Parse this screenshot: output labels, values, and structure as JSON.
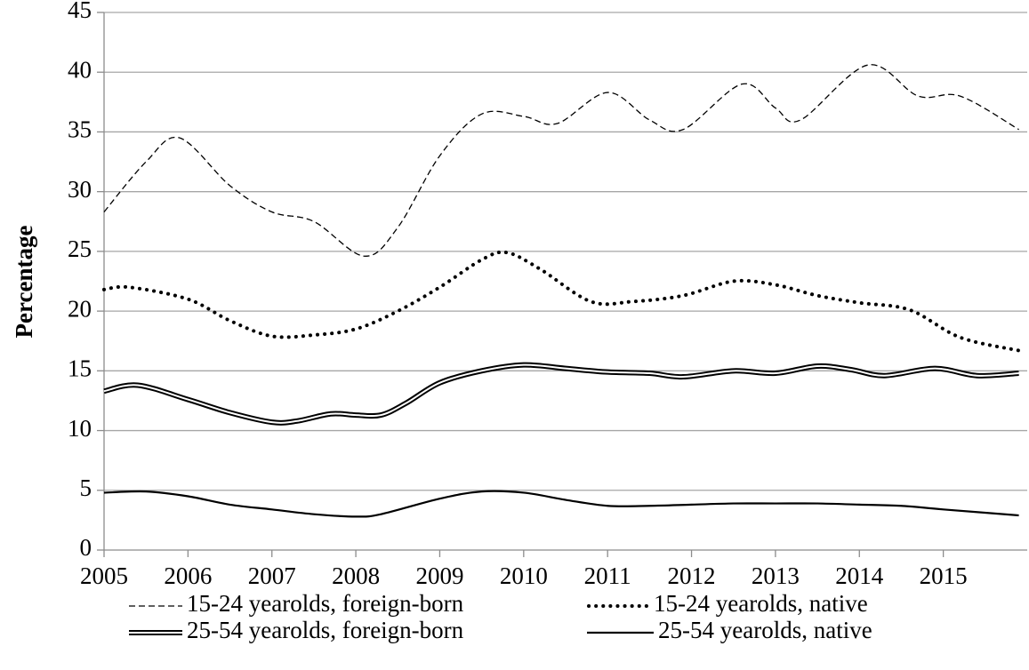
{
  "chart_data": {
    "type": "line",
    "y_label": "Percentage",
    "xlim": [
      2005,
      2016
    ],
    "xticks": [
      2005,
      2006,
      2007,
      2008,
      2009,
      2010,
      2011,
      2012,
      2013,
      2014,
      2015
    ],
    "ylim": [
      0,
      45
    ],
    "yticks": [
      0,
      5,
      10,
      15,
      20,
      25,
      30,
      35,
      40,
      45
    ],
    "grid": true,
    "legend": "bottom",
    "series": [
      {
        "name": "15-24 yearolds, foreign-born",
        "color": "#000000",
        "style": "dashed",
        "x": [
          2005,
          2005.5,
          2005.9,
          2006.5,
          2007,
          2007.5,
          2008.1,
          2008.5,
          2009,
          2009.5,
          2010,
          2010.4,
          2011,
          2011.5,
          2011.9,
          2012.6,
          2013,
          2013.3,
          2014.1,
          2014.7,
          2015.2,
          2015.9
        ],
        "values": [
          28.3,
          32.5,
          34.5,
          30.5,
          28.3,
          27.5,
          24.6,
          27,
          33,
          36.5,
          36.3,
          35.7,
          38.3,
          36,
          35.2,
          39,
          37,
          36,
          40.6,
          38,
          38,
          35.2
        ]
      },
      {
        "name": "15-24 yearolds, native",
        "color": "#000000",
        "style": "dotted",
        "x": [
          2005,
          2005.3,
          2006,
          2006.5,
          2007,
          2007.5,
          2008,
          2008.5,
          2009,
          2009.5,
          2009.8,
          2010.2,
          2010.8,
          2011.3,
          2011.9,
          2012.5,
          2013,
          2013.5,
          2014,
          2014.6,
          2015.2,
          2015.9
        ],
        "values": [
          21.8,
          22,
          21,
          19.2,
          17.9,
          18,
          18.5,
          20,
          22,
          24.3,
          24.9,
          23.5,
          20.8,
          20.8,
          21.3,
          22.5,
          22.2,
          21.3,
          20.7,
          20.1,
          17.8,
          16.7
        ]
      },
      {
        "name": "25-54 yearolds, foreign-born",
        "color": "#000000",
        "style": "double",
        "x": [
          2005,
          2005.4,
          2006,
          2006.5,
          2007,
          2007.3,
          2007.7,
          2008,
          2008.3,
          2008.6,
          2009,
          2009.5,
          2010,
          2010.5,
          2011,
          2011.5,
          2011.9,
          2012.5,
          2013,
          2013.5,
          2013.9,
          2014.3,
          2014.9,
          2015.4,
          2015.9
        ],
        "values": [
          13.3,
          13.8,
          12.6,
          11.5,
          10.7,
          10.8,
          11.4,
          11.3,
          11.3,
          12.3,
          14,
          15,
          15.5,
          15.2,
          14.9,
          14.8,
          14.5,
          15,
          14.8,
          15.4,
          15.1,
          14.6,
          15.2,
          14.6,
          14.8
        ]
      },
      {
        "name": "25-54 yearolds, native",
        "color": "#000000",
        "style": "solid",
        "x": [
          2005,
          2005.5,
          2006,
          2006.5,
          2007,
          2007.5,
          2008,
          2008.3,
          2009,
          2009.5,
          2010,
          2010.5,
          2011,
          2011.5,
          2012,
          2012.5,
          2013,
          2013.5,
          2014,
          2014.5,
          2015,
          2015.9
        ],
        "values": [
          4.8,
          4.9,
          4.5,
          3.8,
          3.4,
          3.0,
          2.8,
          3.0,
          4.3,
          4.9,
          4.8,
          4.2,
          3.7,
          3.7,
          3.8,
          3.9,
          3.9,
          3.9,
          3.8,
          3.7,
          3.4,
          2.9
        ]
      }
    ]
  }
}
